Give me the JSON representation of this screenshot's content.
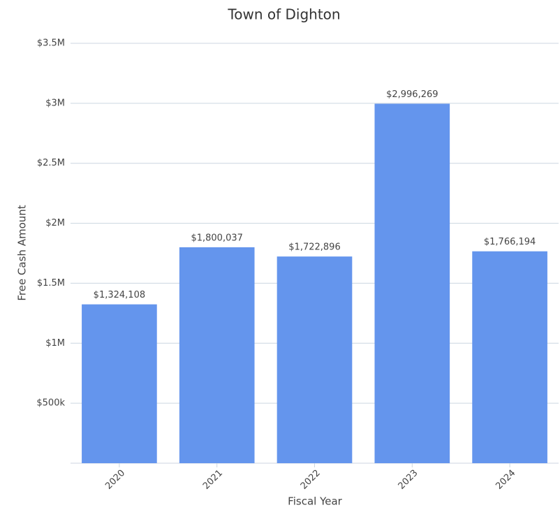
{
  "chart_data": {
    "type": "bar",
    "title": "Town of Dighton",
    "xlabel": "Fiscal Year",
    "ylabel": "Free Cash Amount",
    "categories": [
      "2020",
      "2021",
      "2022",
      "2023",
      "2024"
    ],
    "values": [
      1324108,
      1800037,
      1722896,
      2996269,
      1766194
    ],
    "value_labels": [
      "$1,324,108",
      "$1,800,037",
      "$1,722,896",
      "$2,996,269",
      "$1,766,194"
    ],
    "color": "#6495ed",
    "ylim": [
      0,
      3500000
    ],
    "yticks": [
      {
        "value": 500000,
        "label": "$500k"
      },
      {
        "value": 1000000,
        "label": "$1M"
      },
      {
        "value": 1500000,
        "label": "$1.5M"
      },
      {
        "value": 2000000,
        "label": "$2M"
      },
      {
        "value": 2500000,
        "label": "$2.5M"
      },
      {
        "value": 3000000,
        "label": "$3M"
      },
      {
        "value": 3500000,
        "label": "$3.5M"
      }
    ],
    "grid": true
  }
}
